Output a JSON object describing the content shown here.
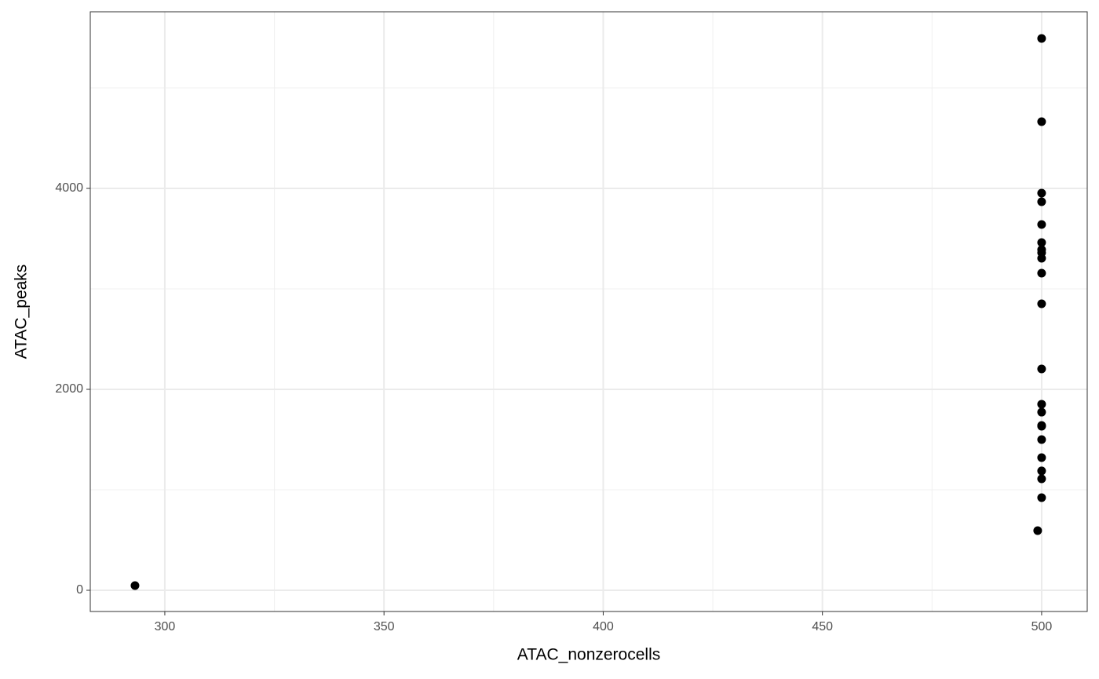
{
  "chart_data": {
    "type": "scatter",
    "x_label": "ATAC_nonzerocells",
    "y_label": "ATAC_peaks",
    "x": [
      293.2,
      500,
      500,
      500,
      500,
      500,
      500,
      500,
      500,
      500,
      500,
      500,
      500,
      500,
      500,
      500,
      500,
      500,
      500,
      500,
      500,
      500,
      499.1
    ],
    "values": [
      47,
      5492,
      4664,
      3953,
      3867,
      3641,
      3461,
      3391,
      3359,
      3305,
      3156,
      2852,
      2203,
      1852,
      1773,
      1641,
      1633,
      1500,
      1320,
      1188,
      1109,
      922,
      594
    ],
    "color": "#000000",
    "xlim": [
      283.0,
      510.4
    ],
    "ylim": [
      -211,
      5758
    ],
    "xticks": [
      300,
      350,
      400,
      450,
      500
    ],
    "yticks": [
      0,
      2000,
      4000
    ],
    "xminor": [
      325,
      375,
      425,
      475
    ],
    "yminor": [
      1000,
      3000,
      5000
    ],
    "grid": true
  }
}
